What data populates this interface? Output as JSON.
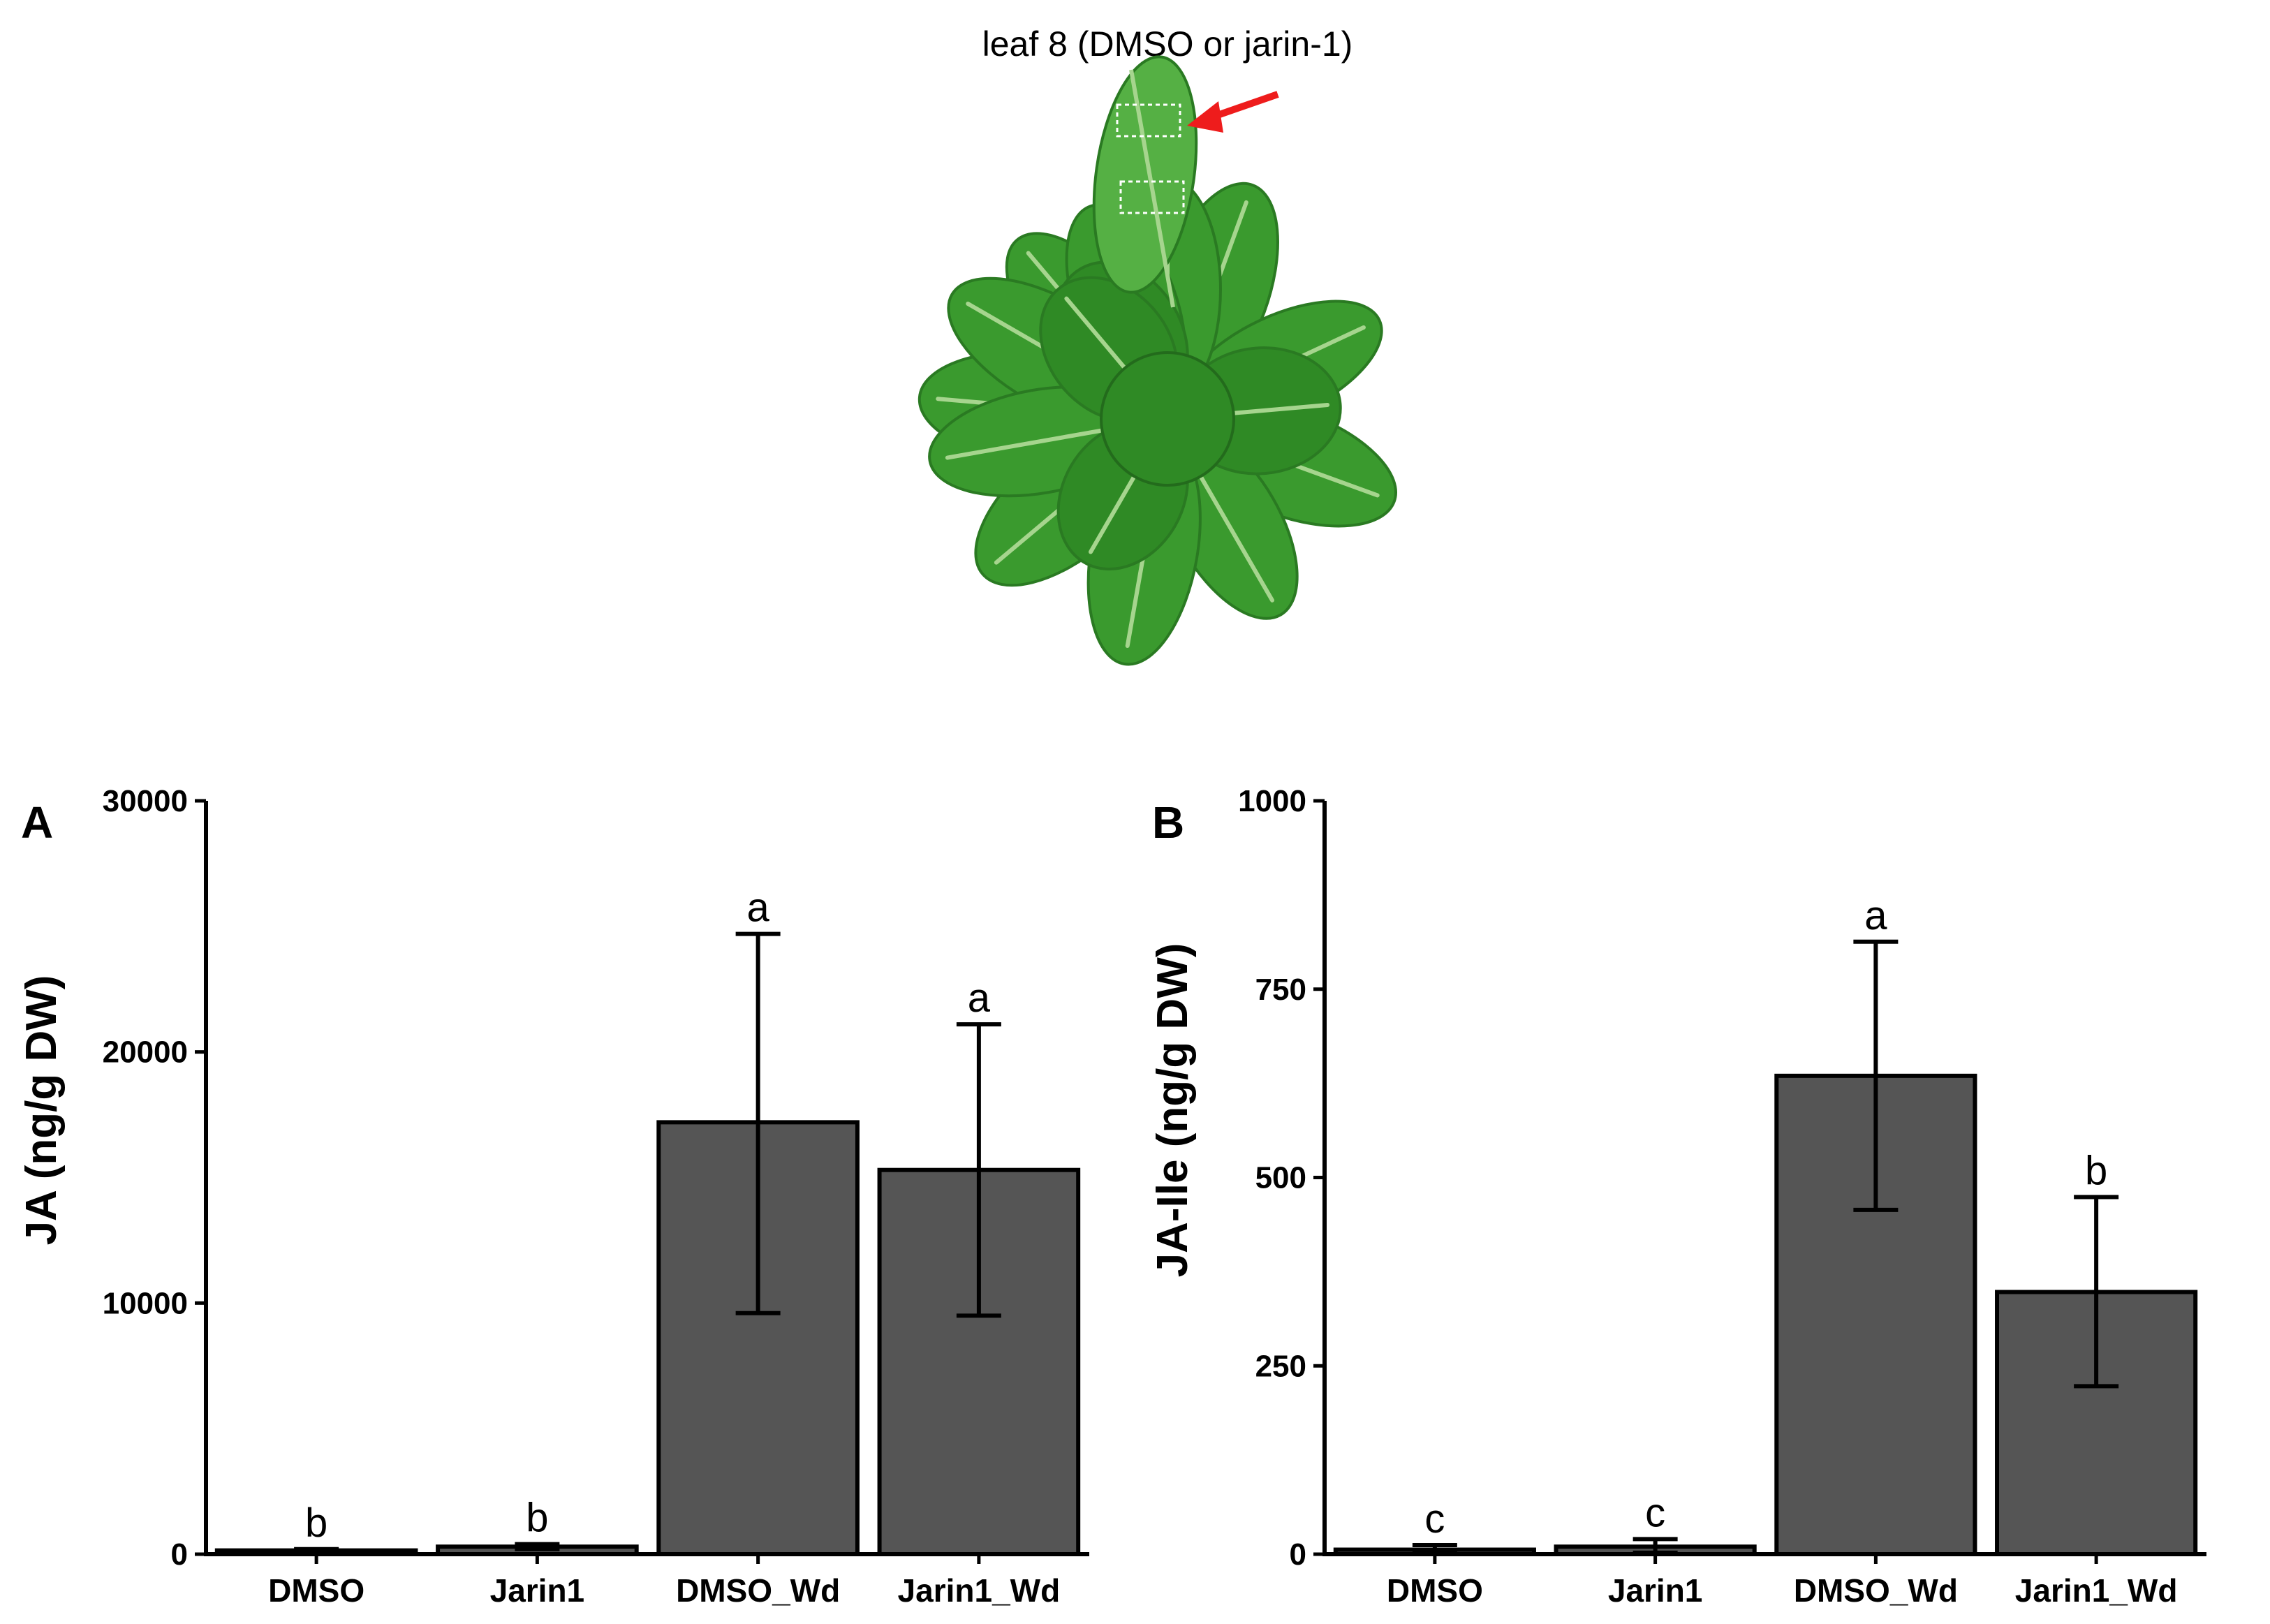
{
  "illustration": {
    "caption": "leaf 8 (DMSO or jarin-1)",
    "arrow_color": "#ee1c1c",
    "leaf_color": "#3a9a2e"
  },
  "chart_data": [
    {
      "type": "bar",
      "panel": "A",
      "categories": [
        "DMSO",
        "Jarin1",
        "DMSO_Wd",
        "Jarin1_Wd"
      ],
      "values": [
        150,
        300,
        17200,
        15300
      ],
      "error_low": [
        100,
        200,
        9600,
        9500
      ],
      "error_high": [
        200,
        400,
        24700,
        21100
      ],
      "significance": [
        "b",
        "b",
        "a",
        "a"
      ],
      "ylabel": "JA (ng/g DW)",
      "xlabel": "",
      "ylim": [
        0,
        30000
      ],
      "yticks": [
        0,
        10000,
        20000,
        30000
      ],
      "bar_color": "#555555",
      "grid": false
    },
    {
      "type": "bar",
      "panel": "B",
      "categories": [
        "DMSO",
        "Jarin1",
        "DMSO_Wd",
        "Jarin1_Wd"
      ],
      "values": [
        6,
        10,
        635,
        348
      ],
      "error_low": [
        2,
        2,
        457,
        223
      ],
      "error_high": [
        12,
        20,
        813,
        474
      ],
      "significance": [
        "c",
        "c",
        "a",
        "b"
      ],
      "ylabel": "JA-Ile (ng/g DW)",
      "xlabel": "",
      "ylim": [
        0,
        1000
      ],
      "yticks": [
        0,
        250,
        500,
        750,
        1000
      ],
      "bar_color": "#555555",
      "grid": false
    }
  ]
}
